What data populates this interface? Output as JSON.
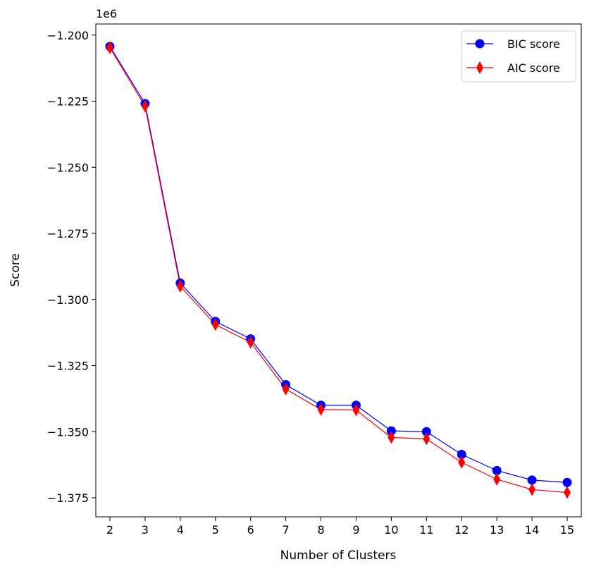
{
  "chart_data": {
    "type": "line",
    "title": "",
    "xlabel": "Number of Clusters",
    "ylabel": "Score",
    "offset_label": "1e6",
    "x": [
      2,
      3,
      4,
      5,
      6,
      7,
      8,
      9,
      10,
      11,
      12,
      13,
      14,
      15
    ],
    "xlim": [
      1.6,
      15.4
    ],
    "ylim": [
      -1.3822,
      -1.1958
    ],
    "y_ticks": [
      -1.2,
      -1.225,
      -1.25,
      -1.275,
      -1.3,
      -1.325,
      -1.35,
      -1.375
    ],
    "y_tick_labels": [
      "−1.200",
      "−1.225",
      "−1.250",
      "−1.275",
      "−1.300",
      "−1.325",
      "−1.350",
      "−1.375"
    ],
    "x_tick_labels": [
      "2",
      "3",
      "4",
      "5",
      "6",
      "7",
      "8",
      "9",
      "10",
      "11",
      "12",
      "13",
      "14",
      "15"
    ],
    "series": [
      {
        "name": "BIC score",
        "color": "#0000ff",
        "marker": "circle",
        "values": [
          -1.2043,
          -1.2259,
          -1.2938,
          -1.3083,
          -1.3149,
          -1.3322,
          -1.34,
          -1.34,
          -1.3497,
          -1.35,
          -1.3586,
          -1.3647,
          -1.3683,
          -1.3692
        ]
      },
      {
        "name": "AIC score",
        "color": "#ff0000",
        "marker": "diamond",
        "values": [
          -1.2048,
          -1.2269,
          -1.295,
          -1.3095,
          -1.3162,
          -1.3339,
          -1.3416,
          -1.3418,
          -1.3522,
          -1.3527,
          -1.3616,
          -1.368,
          -1.3719,
          -1.373
        ]
      }
    ],
    "legend_position": "top-right",
    "grid": false
  }
}
